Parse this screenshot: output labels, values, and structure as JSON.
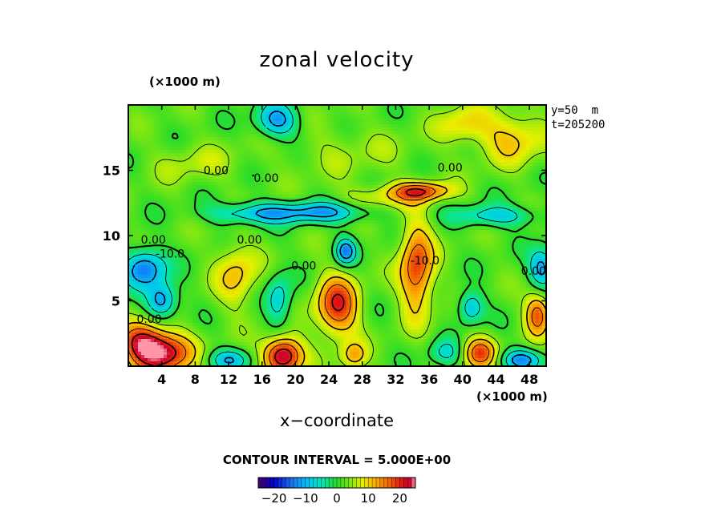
{
  "chart_data": {
    "type": "heatmap",
    "title": "zonal velocity",
    "xlabel": "x−coordinate",
    "x_unit_label": "(×1000 m)",
    "y_unit_label": "(×1000 m)",
    "xlim": [
      0,
      50
    ],
    "ylim": [
      0,
      20
    ],
    "x_ticks": [
      4,
      8,
      12,
      16,
      20,
      24,
      28,
      32,
      36,
      40,
      44,
      48
    ],
    "y_ticks": [
      5,
      10,
      15
    ],
    "level_label": "y=50  m",
    "time_label": "t=205200",
    "contour_interval_label": "CONTOUR INTERVAL = 5.000E+00",
    "contour_labels": [
      "0.00",
      "0.00",
      "0.00",
      "0.00",
      "-10.0",
      "0.00",
      "0.00",
      "-10.0",
      "0.00",
      "0.00"
    ],
    "colorbar": {
      "range": [
        -25,
        25
      ],
      "ticks": [
        -20,
        -10,
        0,
        10,
        20
      ],
      "tick_labels": [
        "−20",
        "−10",
        "0",
        "10",
        "20"
      ]
    },
    "blobs": [
      {
        "x": 4,
        "y": 1.0,
        "v": 22,
        "sx": 3.5,
        "sy": 1.6
      },
      {
        "x": 1.5,
        "y": 2.0,
        "v": 14,
        "sx": 2.5,
        "sy": 1.5
      },
      {
        "x": 18.5,
        "y": 0.8,
        "v": 24,
        "sx": 2.3,
        "sy": 1.4
      },
      {
        "x": 25,
        "y": 4.6,
        "v": 18,
        "sx": 2.5,
        "sy": 2.3
      },
      {
        "x": 34.5,
        "y": 7.5,
        "v": 17,
        "sx": 2.0,
        "sy": 3.5
      },
      {
        "x": 35,
        "y": 13.4,
        "v": 16,
        "sx": 3.5,
        "sy": 0.7
      },
      {
        "x": 42,
        "y": 1.0,
        "v": 16,
        "sx": 2.0,
        "sy": 1.2
      },
      {
        "x": 49,
        "y": 4.0,
        "v": 16,
        "sx": 1.5,
        "sy": 1.6
      },
      {
        "x": 27,
        "y": 0.8,
        "v": 10,
        "sx": 1.5,
        "sy": 1.0
      },
      {
        "x": 13,
        "y": 7.0,
        "v": 9,
        "sx": 2.5,
        "sy": 2.5
      },
      {
        "x": 30,
        "y": 12.8,
        "v": 6,
        "sx": 5.0,
        "sy": 1.0
      },
      {
        "x": 46,
        "y": 17.5,
        "v": 9,
        "sx": 4.0,
        "sy": 2.0
      },
      {
        "x": 40,
        "y": 18.5,
        "v": 7,
        "sx": 3.0,
        "sy": 1.5
      },
      {
        "x": 2,
        "y": 7.5,
        "v": -16,
        "sx": 2.5,
        "sy": 1.5
      },
      {
        "x": 4,
        "y": 5.0,
        "v": -15,
        "sx": 1.8,
        "sy": 1.3
      },
      {
        "x": 23.5,
        "y": 11.8,
        "v": -12,
        "sx": 6.0,
        "sy": 0.8
      },
      {
        "x": 15,
        "y": 11.7,
        "v": -11,
        "sx": 5.5,
        "sy": 0.8
      },
      {
        "x": 44,
        "y": 11.5,
        "v": -10,
        "sx": 5.0,
        "sy": 0.8
      },
      {
        "x": 17.8,
        "y": 18.8,
        "v": -14,
        "sx": 2.5,
        "sy": 1.3
      },
      {
        "x": 26,
        "y": 8.8,
        "v": -15,
        "sx": 1.2,
        "sy": 1.0
      },
      {
        "x": 18,
        "y": 5.0,
        "v": -10,
        "sx": 1.5,
        "sy": 2.0
      },
      {
        "x": 41,
        "y": 4.5,
        "v": -12,
        "sx": 1.5,
        "sy": 1.2
      },
      {
        "x": 49.5,
        "y": 7.5,
        "v": -14,
        "sx": 1.5,
        "sy": 1.5
      },
      {
        "x": 47,
        "y": 0.5,
        "v": -14,
        "sx": 2.5,
        "sy": 0.8
      },
      {
        "x": 12,
        "y": 0.5,
        "v": -11,
        "sx": 2.5,
        "sy": 0.8
      },
      {
        "x": 38,
        "y": 1.0,
        "v": -8,
        "sx": 2.0,
        "sy": 1.0
      },
      {
        "x": 8,
        "y": 15.5,
        "v": 4,
        "sx": 5.0,
        "sy": 1.5
      },
      {
        "x": 26,
        "y": 16.5,
        "v": 3,
        "sx": 8.0,
        "sy": 2.0
      }
    ]
  }
}
